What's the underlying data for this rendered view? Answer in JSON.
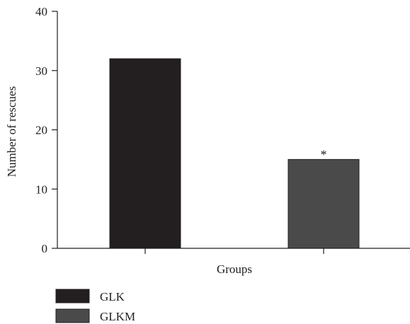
{
  "chart_data": {
    "type": "bar",
    "categories": [
      "GLK",
      "GLKM"
    ],
    "values": [
      32,
      15
    ],
    "xlabel": "Groups",
    "ylabel": "Number of rescues",
    "ylim": [
      0,
      40
    ],
    "yticks": [
      0,
      10,
      20,
      30,
      40
    ],
    "legend": {
      "position": "bottom-left",
      "entries": [
        {
          "label": "GLK",
          "color": "#231f20"
        },
        {
          "label": "GLKM",
          "color": "#4a4a4a"
        }
      ]
    },
    "annotations": [
      {
        "category": "GLKM",
        "text": "*"
      }
    ],
    "colors": {
      "axis": "#231f20",
      "bars": [
        "#231f20",
        "#4a4a4a"
      ]
    }
  }
}
